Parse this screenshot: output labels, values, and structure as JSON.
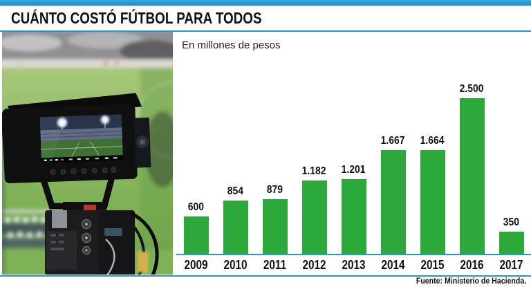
{
  "page": {
    "accent_blue": "#2398d4",
    "bar_green": "#2da83a"
  },
  "header": {
    "title": "CUÁNTO COSTÓ FÚTBOL PARA TODOS"
  },
  "chart": {
    "subtitle": "En millones de pesos",
    "source": "Fuente: Ministerio de Hacienda."
  },
  "photo": {
    "description": "TV broadcast camera with monitor filming a football stadium"
  },
  "chart_data": {
    "type": "bar",
    "title": "CUÁNTO COSTÓ FÚTBOL PARA TODOS",
    "subtitle": "En millones de pesos",
    "unit": "millones de pesos",
    "categories": [
      "2009",
      "2010",
      "2011",
      "2012",
      "2013",
      "2014",
      "2015",
      "2016",
      "2017"
    ],
    "values": [
      600,
      854,
      879,
      1182,
      1201,
      1667,
      1664,
      2500,
      350
    ],
    "value_labels": [
      "600",
      "854",
      "879",
      "1.182",
      "1.201",
      "1.667",
      "1.664",
      "2.500",
      "350"
    ],
    "ylim": [
      0,
      2500
    ],
    "grid": false,
    "legend": "none",
    "bar_color": "#2da83a",
    "source": "Fuente: Ministerio de Hacienda."
  }
}
